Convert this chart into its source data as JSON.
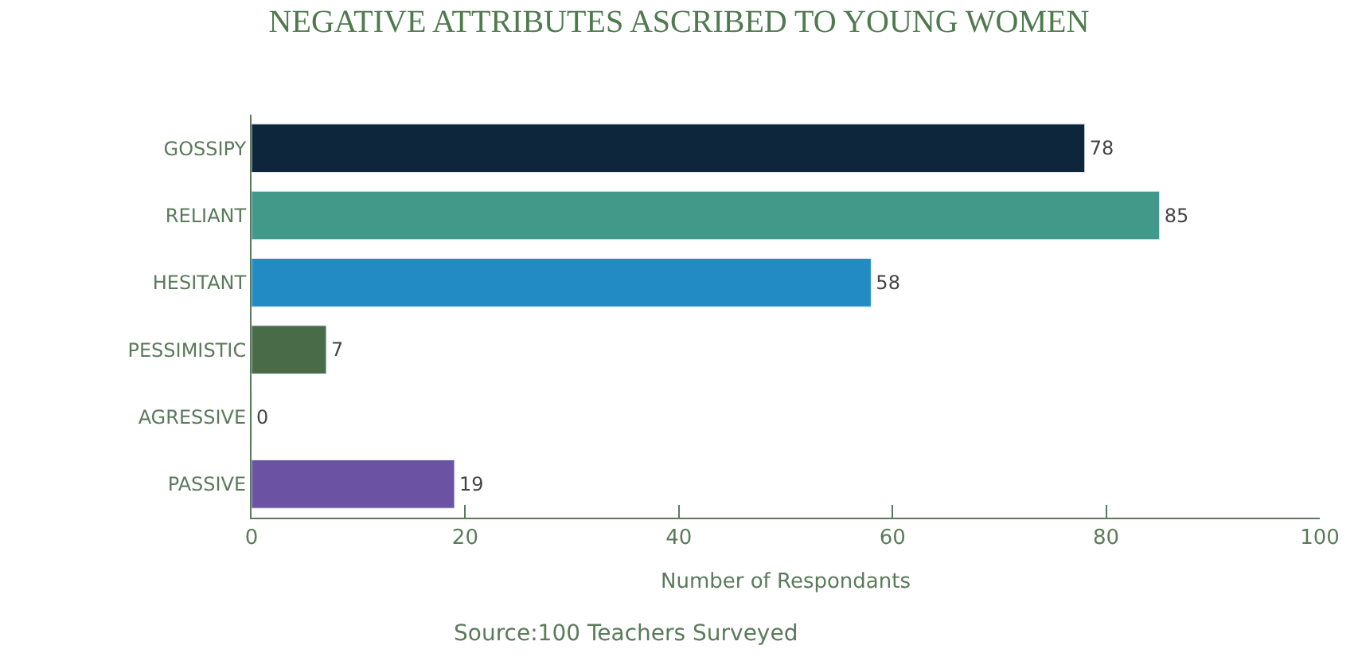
{
  "chart_data": {
    "type": "bar",
    "orientation": "horizontal",
    "title": "NEGATIVE ATTRIBUTES ASCRIBED TO YOUNG WOMEN",
    "xlabel": "Number of Respondants",
    "categories": [
      "GOSSIPY",
      "RELIANT",
      "HESITANT",
      "PESSIMISTIC",
      "AGRESSIVE",
      "PASSIVE"
    ],
    "values": [
      78,
      85,
      58,
      7,
      0,
      19
    ],
    "colors": [
      "#0e263b",
      "#42998a",
      "#228bc4",
      "#4a6b48",
      null,
      "#6b52a3"
    ],
    "xlim": [
      0,
      100
    ],
    "xticks": [
      0,
      20,
      40,
      60,
      80,
      100
    ],
    "data_labels": true,
    "annotations": [
      "Source:100 Teachers Surveyed"
    ]
  }
}
